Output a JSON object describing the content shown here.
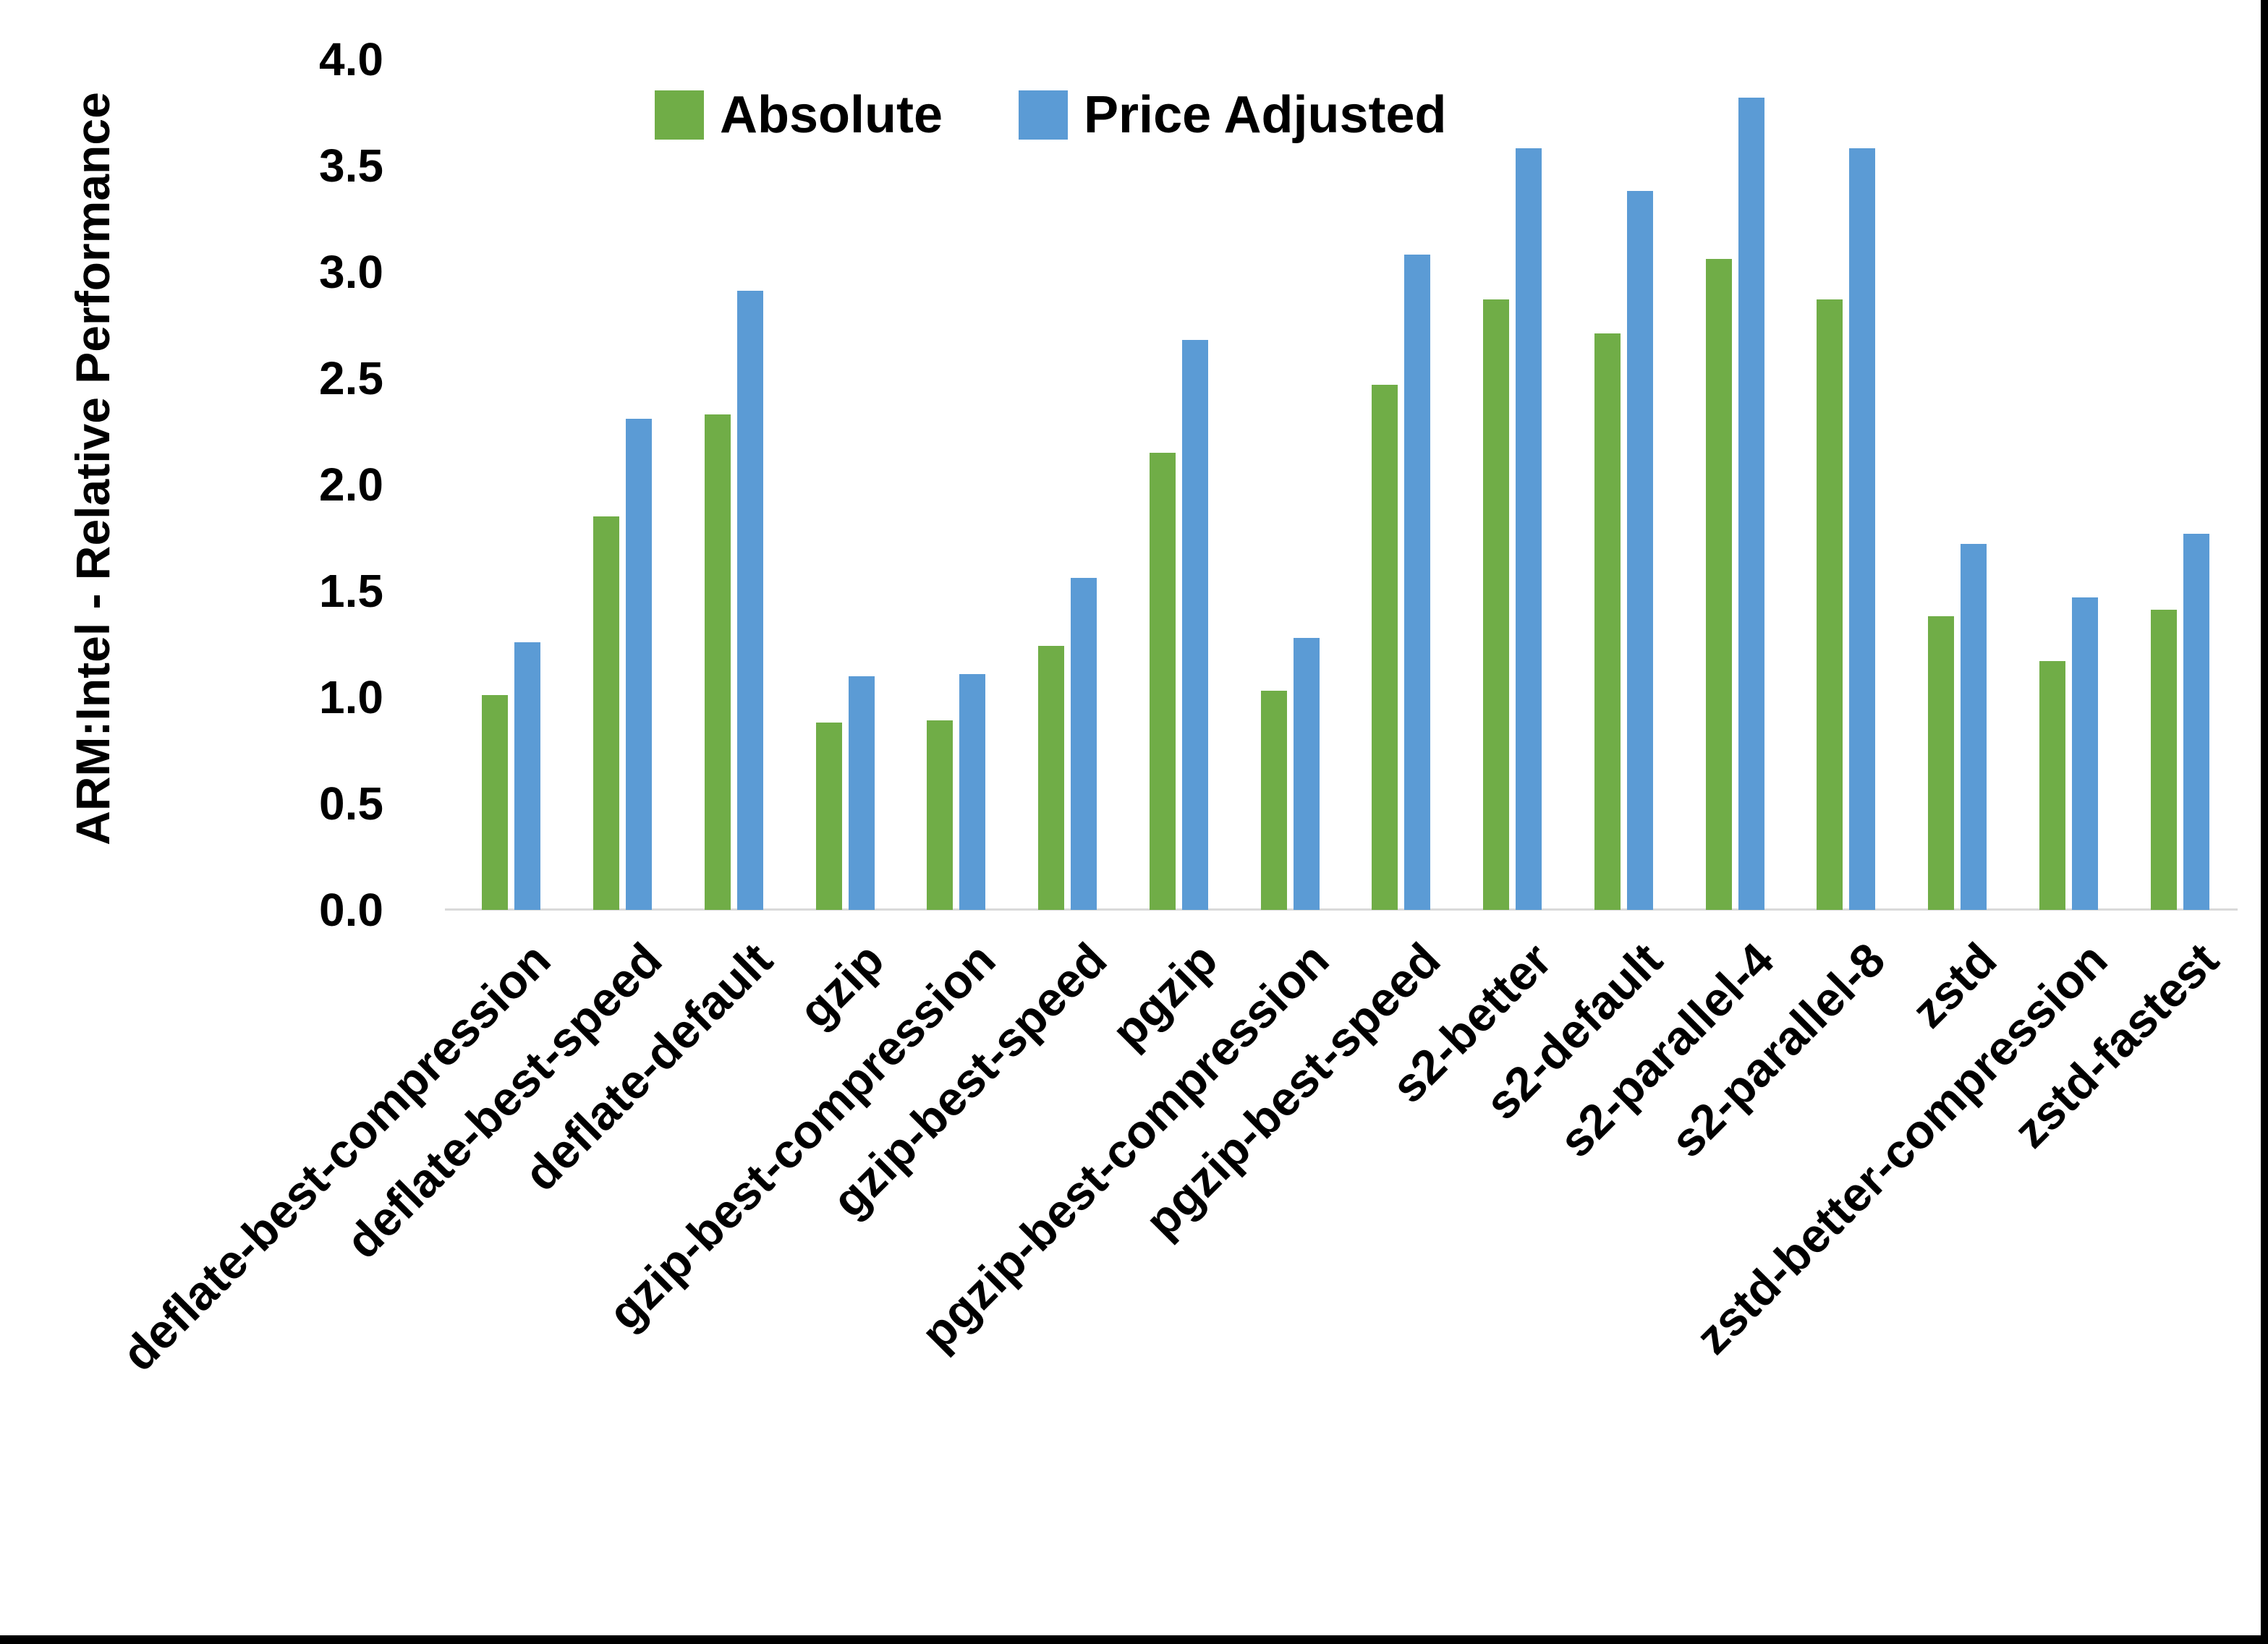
{
  "frame": {
    "background_color": "#FFFFFF",
    "border_color": "#000000"
  },
  "chart_data": {
    "type": "bar",
    "title": "",
    "xlabel": "",
    "ylabel": "ARM:Intel - Relative Performance",
    "ylim": [
      0.0,
      4.0
    ],
    "ytick_step": 0.5,
    "yticks_top_to_bottom": [
      "4.0",
      "3.5",
      "3.0",
      "2.5",
      "2.0",
      "1.5",
      "1.0",
      "0.5",
      "0.0"
    ],
    "grid": false,
    "legend_position": "top-center",
    "axis_line_color": "#D9D9D9",
    "text_color": "#000000",
    "categories": [
      "deflate-best-compression",
      "deflate-best-speed",
      "deflate-default",
      "gzip",
      "gzip-best-compression",
      "gzip-best-speed",
      "pgzip",
      "pgzip-best-compression",
      "pgzip-best-speed",
      "s2-better",
      "s2-default",
      "s2-parallel-4",
      "s2-parallel-8",
      "zstd",
      "zstd-better-compression",
      "zstd-fastest"
    ],
    "series": [
      {
        "name": "Absolute",
        "color": "#70AD47",
        "values": [
          1.01,
          1.85,
          2.33,
          0.88,
          0.89,
          1.24,
          2.15,
          1.03,
          2.47,
          2.87,
          2.71,
          3.06,
          2.87,
          1.38,
          1.17,
          1.41
        ]
      },
      {
        "name": "Price Adjusted",
        "color": "#5B9BD5",
        "values": [
          1.26,
          2.31,
          2.91,
          1.1,
          1.11,
          1.56,
          2.68,
          1.28,
          3.08,
          3.58,
          3.38,
          3.82,
          3.58,
          1.72,
          1.47,
          1.77
        ]
      }
    ]
  }
}
